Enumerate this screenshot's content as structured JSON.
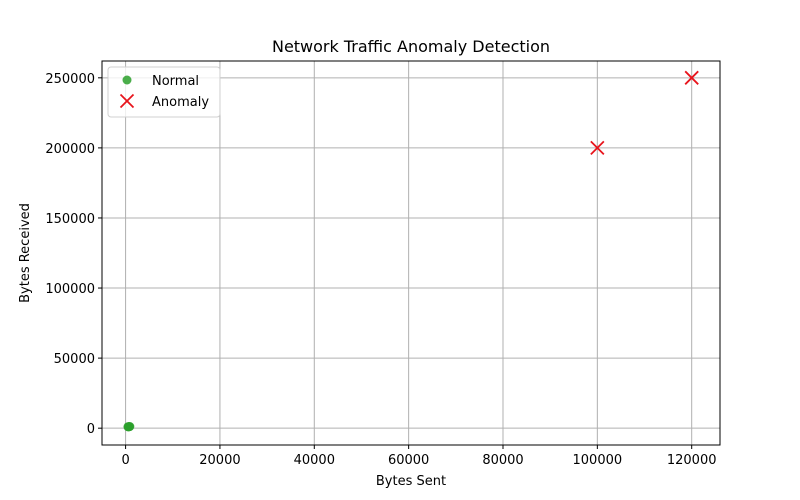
{
  "chart_data": {
    "type": "scatter",
    "title": "Network Traffic Anomaly Detection",
    "xlabel": "Bytes Sent",
    "ylabel": "Bytes Received",
    "xlim": [
      -5000,
      126000
    ],
    "ylim": [
      -12000,
      262000
    ],
    "xticks": [
      0,
      20000,
      40000,
      60000,
      80000,
      100000,
      120000
    ],
    "yticks": [
      0,
      50000,
      100000,
      150000,
      200000,
      250000
    ],
    "grid": true,
    "legend_position": "top-left",
    "series": [
      {
        "name": "Normal",
        "marker": "circle",
        "color": "#2ca02c",
        "points": [
          [
            500,
            1000
          ],
          [
            700,
            1100
          ],
          [
            900,
            1200
          ],
          [
            600,
            950
          ],
          [
            800,
            1050
          ]
        ]
      },
      {
        "name": "Anomaly",
        "marker": "x",
        "color": "#e8141c",
        "points": [
          [
            100000,
            200000
          ],
          [
            120000,
            250000
          ]
        ]
      }
    ]
  }
}
